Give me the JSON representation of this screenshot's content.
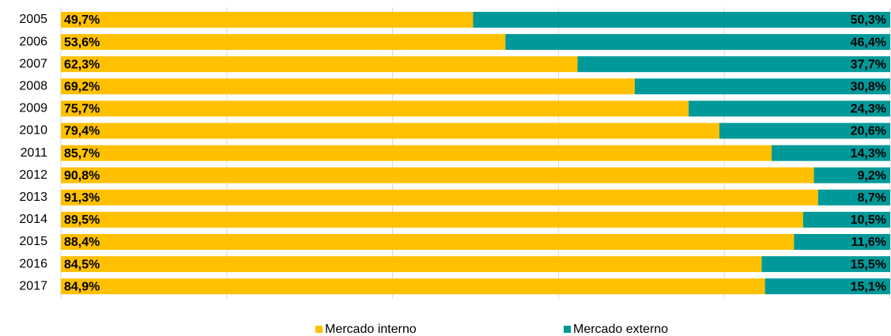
{
  "chart_data": {
    "type": "stacked_bar_horizontal",
    "categories": [
      "2005",
      "2006",
      "2007",
      "2008",
      "2009",
      "2010",
      "2011",
      "2012",
      "2013",
      "2014",
      "2015",
      "2016",
      "2017"
    ],
    "series": [
      {
        "name": "Mercado interno",
        "color": "#ffc000",
        "values": [
          49.7,
          53.6,
          62.3,
          69.2,
          75.7,
          79.4,
          85.7,
          90.8,
          91.3,
          89.5,
          88.4,
          84.5,
          84.9
        ],
        "value_labels": [
          "49,7%",
          "53,6%",
          "62,3%",
          "69,2%",
          "75,7%",
          "79,4%",
          "85,7%",
          "90,8%",
          "91,3%",
          "89,5%",
          "88,4%",
          "84,5%",
          "84,9%"
        ]
      },
      {
        "name": "Mercado externo",
        "color": "#009999",
        "values": [
          50.3,
          46.4,
          37.7,
          30.8,
          24.3,
          20.6,
          14.3,
          9.2,
          8.7,
          10.5,
          11.6,
          15.5,
          15.1
        ],
        "value_labels": [
          "50,3%",
          "46,4%",
          "37,7%",
          "30,8%",
          "24,3%",
          "20,6%",
          "14,3%",
          "9,2%",
          "8,7%",
          "10,5%",
          "11,6%",
          "15,5%",
          "15,1%"
        ]
      }
    ],
    "xlim": [
      0,
      100
    ],
    "xticks": [
      0,
      20,
      40,
      60,
      80,
      100
    ],
    "grid": true,
    "legend": "bottom"
  }
}
